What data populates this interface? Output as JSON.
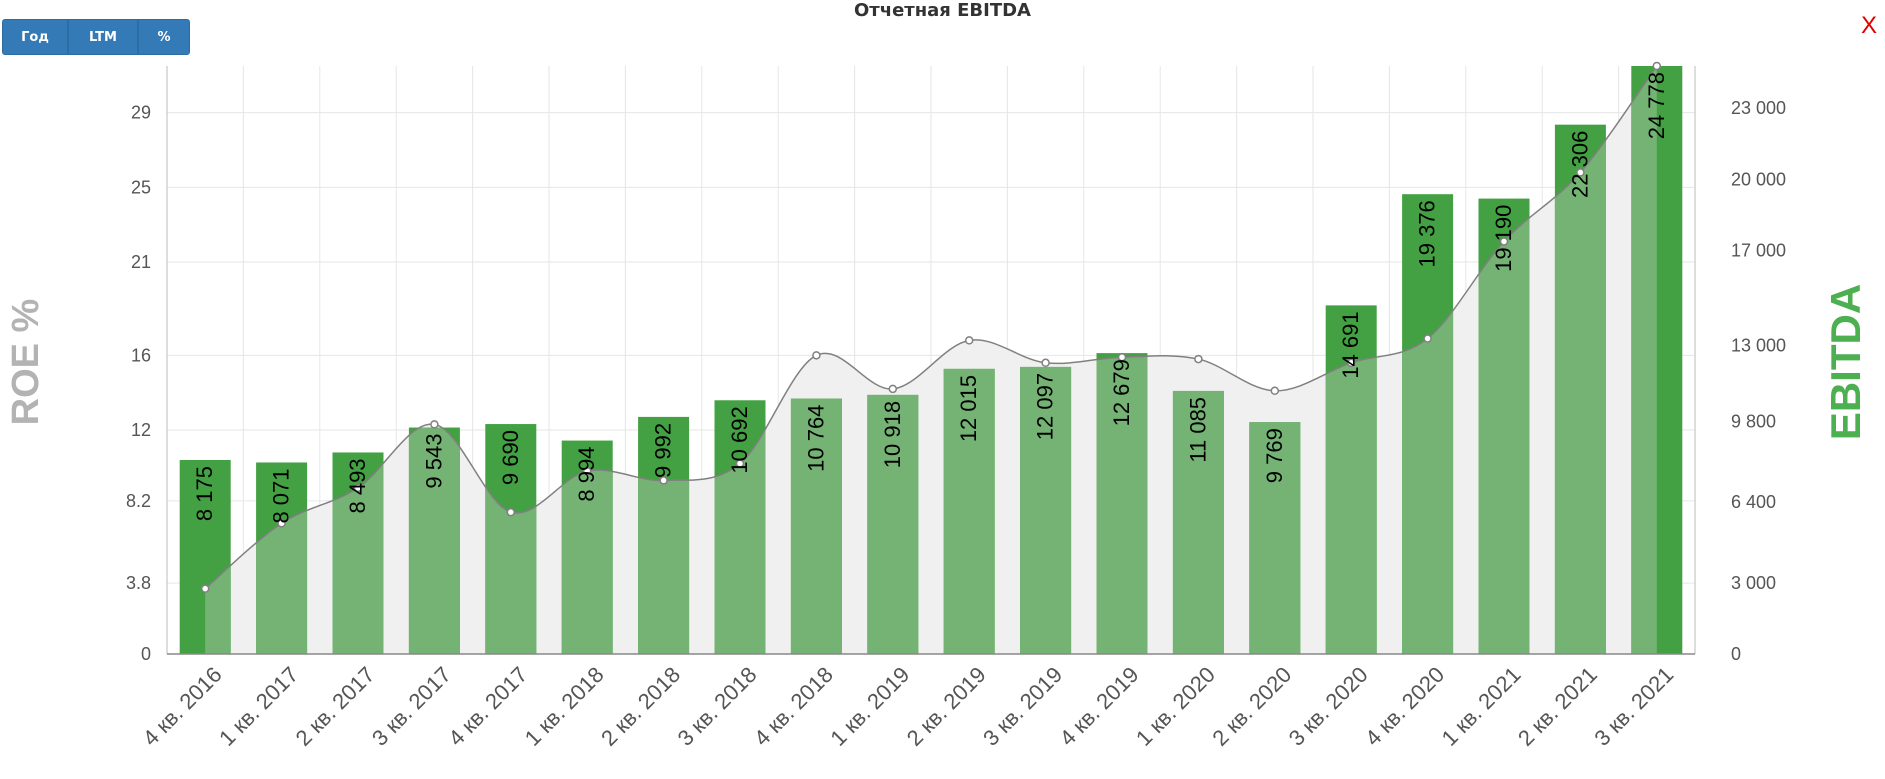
{
  "toolbar": {
    "buttons": [
      "Год",
      "LTM",
      "%"
    ]
  },
  "close_label": "X",
  "chart_data": {
    "type": "bar",
    "title": "Отчетная EBITDA",
    "categories": [
      "4 кв. 2016",
      "1 кв. 2017",
      "2 кв. 2017",
      "3 кв. 2017",
      "4 кв. 2017",
      "1 кв. 2018",
      "2 кв. 2018",
      "3 кв. 2018",
      "4 кв. 2018",
      "1 кв. 2019",
      "2 кв. 2019",
      "3 кв. 2019",
      "4 кв. 2019",
      "1 кв. 2020",
      "2 кв. 2020",
      "3 кв. 2020",
      "4 кв. 2020",
      "1 кв. 2021",
      "2 кв. 2021",
      "3 кв. 2021"
    ],
    "series": [
      {
        "type": "bar",
        "axis": "right",
        "values": [
          8175,
          8071,
          8493,
          9543,
          9690,
          8994,
          9992,
          10692,
          10764,
          10918,
          12015,
          12097,
          12679,
          11085,
          9769,
          14691,
          19376,
          19190,
          22306,
          24778
        ],
        "labels": [
          "8 175",
          "8 071",
          "8 493",
          "9 543",
          "9 690",
          "8 994",
          "9 992",
          "10 692",
          "10 764",
          "10 918",
          "12 015",
          "12 097",
          "12 679",
          "11 085",
          "9 769",
          "14 691",
          "19 376",
          "19 190",
          "22 306",
          "24 778"
        ]
      },
      {
        "type": "area",
        "axis": "left",
        "values": [
          3.5,
          7.0,
          8.9,
          12.3,
          7.6,
          9.8,
          9.3,
          10.2,
          16.0,
          14.2,
          16.8,
          15.6,
          15.9,
          15.8,
          14.1,
          15.6,
          16.9,
          22.1,
          25.8,
          31.5
        ]
      }
    ],
    "left_axis": {
      "title": "ROE %",
      "ticks": [
        "0",
        "3.8",
        "8.2",
        "12",
        "16",
        "21",
        "25",
        "29"
      ],
      "tick_values": [
        0,
        3.8,
        8.2,
        12,
        16,
        21,
        25,
        29
      ],
      "range": [
        0,
        31.5
      ]
    },
    "right_axis": {
      "title": "EBITDA",
      "ticks": [
        "0",
        "3 000",
        "6 400",
        "9 800",
        "13 000",
        "17 000",
        "20 000",
        "23 000"
      ],
      "tick_values": [
        0,
        3000,
        6400,
        9800,
        13000,
        17000,
        20000,
        23000
      ],
      "range": [
        0,
        24778
      ]
    },
    "colors": {
      "bar_dark": "#43a043",
      "bar_light": "#74b374",
      "area_fill": "#f0f0f0",
      "line": "#808080",
      "left_axis_title": "#b3b3b3",
      "right_axis_title": "#4caf50",
      "grid": "#e6e6e6"
    },
    "grid": true
  }
}
